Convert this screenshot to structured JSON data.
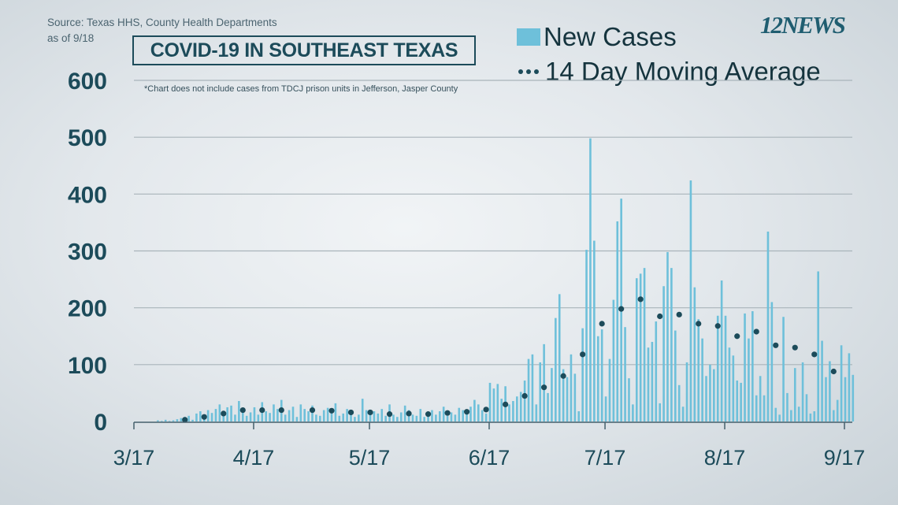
{
  "source_line1": "Source: Texas HHS, County Health Departments",
  "source_line2": "as of 9/18",
  "title": "COVID-19 IN SOUTHEAST TEXAS",
  "note": "*Chart does not include cases from TDCJ prison units in Jefferson, Jasper County",
  "logo": "12NEWS",
  "colors": {
    "bars": "#6ec0da",
    "dots": "#1c4b5a",
    "text": "#1c4b5a",
    "grid": "#a9b4ba"
  },
  "chart_data": {
    "type": "bar",
    "title": "COVID-19 IN SOUTHEAST TEXAS",
    "xlabel": "",
    "ylabel": "",
    "ylim": [
      0,
      600
    ],
    "yticks": [
      0,
      100,
      200,
      300,
      400,
      500,
      600
    ],
    "ytick_labels": [
      "0",
      "100",
      "200",
      "300",
      "400",
      "500",
      "600"
    ],
    "xtick_labels": [
      "3/17",
      "4/17",
      "5/17",
      "6/17",
      "7/17",
      "8/17",
      "9/17"
    ],
    "xtick_day_index": [
      0,
      31,
      61,
      92,
      122,
      153,
      184
    ],
    "grid": "horizontal",
    "legend": [
      {
        "label": "New Cases",
        "marker": "square"
      },
      {
        "label": "14 Day Moving Average",
        "marker": "dots"
      }
    ],
    "legend_position": "top-right",
    "start_date": "3/17",
    "series": [
      {
        "name": "New Cases",
        "type": "bar",
        "values": [
          0,
          0,
          0,
          0,
          0,
          0,
          2,
          1,
          3,
          1,
          2,
          4,
          6,
          8,
          10,
          3,
          14,
          18,
          12,
          20,
          15,
          22,
          30,
          18,
          25,
          28,
          12,
          36,
          20,
          10,
          16,
          25,
          12,
          34,
          18,
          15,
          30,
          22,
          38,
          12,
          20,
          26,
          8,
          30,
          22,
          18,
          28,
          12,
          10,
          20,
          24,
          16,
          32,
          10,
          14,
          22,
          18,
          8,
          12,
          40,
          20,
          15,
          18,
          14,
          22,
          10,
          30,
          12,
          8,
          16,
          28,
          20,
          12,
          10,
          22,
          8,
          14,
          20,
          12,
          18,
          26,
          10,
          16,
          12,
          24,
          20,
          14,
          26,
          38,
          30,
          20,
          14,
          68,
          58,
          66,
          40,
          62,
          30,
          36,
          44,
          52,
          72,
          110,
          118,
          30,
          104,
          136,
          50,
          94,
          182,
          224,
          92,
          78,
          118,
          84,
          18,
          164,
          302,
          498,
          318,
          150,
          162,
          44,
          110,
          214,
          352,
          392,
          166,
          76,
          30,
          252,
          260,
          270,
          130,
          140,
          176,
          32,
          238,
          298,
          270,
          160,
          64,
          26,
          104,
          424,
          236,
          180,
          146,
          80,
          100,
          92,
          186,
          248,
          186,
          130,
          116,
          72,
          68,
          190,
          146,
          194,
          46,
          80,
          46,
          334,
          210,
          24,
          12,
          184,
          50,
          20,
          94,
          26,
          104,
          48,
          14,
          18,
          264,
          142,
          78,
          106,
          20,
          38,
          134,
          78,
          120,
          82
        ],
        "approx": true
      },
      {
        "name": "14 Day Moving Average",
        "type": "scatter",
        "points_day_index": [
          13,
          18,
          23,
          28,
          33,
          38,
          46,
          51,
          56,
          61,
          66,
          71,
          76,
          81,
          86,
          91,
          96,
          101,
          106,
          111,
          116,
          121,
          126,
          131,
          136,
          141,
          146,
          151,
          156,
          161,
          166,
          171,
          176,
          181
        ],
        "values": [
          3,
          8,
          14,
          20,
          20,
          20,
          20,
          19,
          16,
          16,
          13,
          14,
          13,
          15,
          17,
          21,
          30,
          45,
          60,
          80,
          118,
          172,
          198,
          215,
          185,
          188,
          172,
          168,
          150,
          158,
          134,
          130,
          118,
          88
        ]
      }
    ]
  }
}
